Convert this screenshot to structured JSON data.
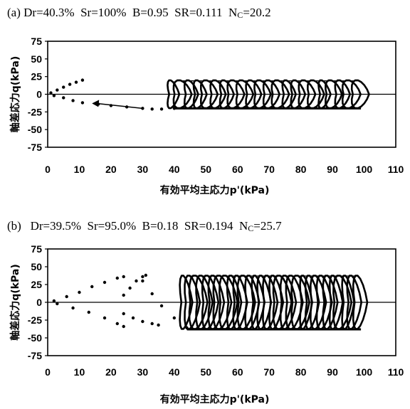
{
  "chart_data": [
    {
      "type": "scatter",
      "panel_label": "(a)",
      "params": [
        {
          "name": "Dr",
          "value": "40.3%"
        },
        {
          "name": "Sr",
          "value": "100%"
        },
        {
          "name": "B",
          "value": "0.95"
        },
        {
          "name": "SR",
          "value": "0.111"
        },
        {
          "name": "N",
          "sub": "C",
          "value": "20.2"
        }
      ],
      "xlabel": "有効平均主応力p'(kPa)",
      "ylabel": "軸差応力q(kPa)",
      "xlim": [
        0,
        110
      ],
      "ylim": [
        -75,
        75
      ],
      "xticks": [
        0,
        10,
        20,
        30,
        40,
        50,
        60,
        70,
        80,
        90,
        100,
        110
      ],
      "yticks": [
        75,
        50,
        25,
        0,
        -25,
        -50,
        -75
      ],
      "amplitude": 20,
      "cyclic_range": [
        40,
        99
      ],
      "series": [
        {
          "x": [
            1,
            3,
            5,
            7,
            9,
            11
          ],
          "y": [
            2,
            6,
            10,
            14,
            17,
            20
          ]
        },
        {
          "x": [
            2,
            5,
            8,
            11
          ],
          "y": [
            -2,
            -5,
            -9,
            -12
          ]
        },
        {
          "x": [
            16,
            20,
            25,
            30,
            33,
            36,
            40
          ],
          "y": [
            -14,
            -16,
            -18,
            -20,
            -21,
            -21,
            -20
          ]
        }
      ],
      "annotations": [
        {
          "type": "arrow",
          "from": [
            30,
            -20
          ],
          "to": [
            14,
            -13
          ]
        }
      ]
    },
    {
      "type": "scatter",
      "panel_label": "(b)",
      "params": [
        {
          "name": "Dr",
          "value": "39.5%"
        },
        {
          "name": "Sr",
          "value": "95.0%"
        },
        {
          "name": "B",
          "value": "0.18"
        },
        {
          "name": "SR",
          "value": "0.194"
        },
        {
          "name": "N",
          "sub": "C",
          "value": "25.7"
        }
      ],
      "xlabel": "有効平均主応力p'(kPa)",
      "ylabel": "軸差応力q(kPa)",
      "xlim": [
        0,
        110
      ],
      "ylim": [
        -75,
        75
      ],
      "xticks": [
        0,
        10,
        20,
        30,
        40,
        50,
        60,
        70,
        80,
        90,
        100,
        110
      ],
      "yticks": [
        75,
        50,
        25,
        0,
        -25,
        -50,
        -75
      ],
      "amplitude": 38,
      "cyclic_range": [
        44,
        99
      ],
      "series": [
        {
          "x": [
            2,
            6,
            10,
            14,
            18,
            22,
            24
          ],
          "y": [
            2,
            8,
            14,
            22,
            28,
            34,
            36
          ]
        },
        {
          "x": [
            3,
            8,
            13,
            18,
            22,
            24
          ],
          "y": [
            -2,
            -8,
            -14,
            -22,
            -30,
            -34
          ]
        },
        {
          "x": [
            24,
            26,
            28,
            30,
            31
          ],
          "y": [
            10,
            20,
            30,
            36,
            38
          ]
        },
        {
          "x": [
            24,
            27,
            30,
            33,
            35
          ],
          "y": [
            -16,
            -22,
            -27,
            -30,
            -32
          ]
        },
        {
          "x": [
            30,
            33,
            36,
            40,
            44
          ],
          "y": [
            30,
            12,
            -5,
            -22,
            -36
          ]
        }
      ]
    }
  ]
}
